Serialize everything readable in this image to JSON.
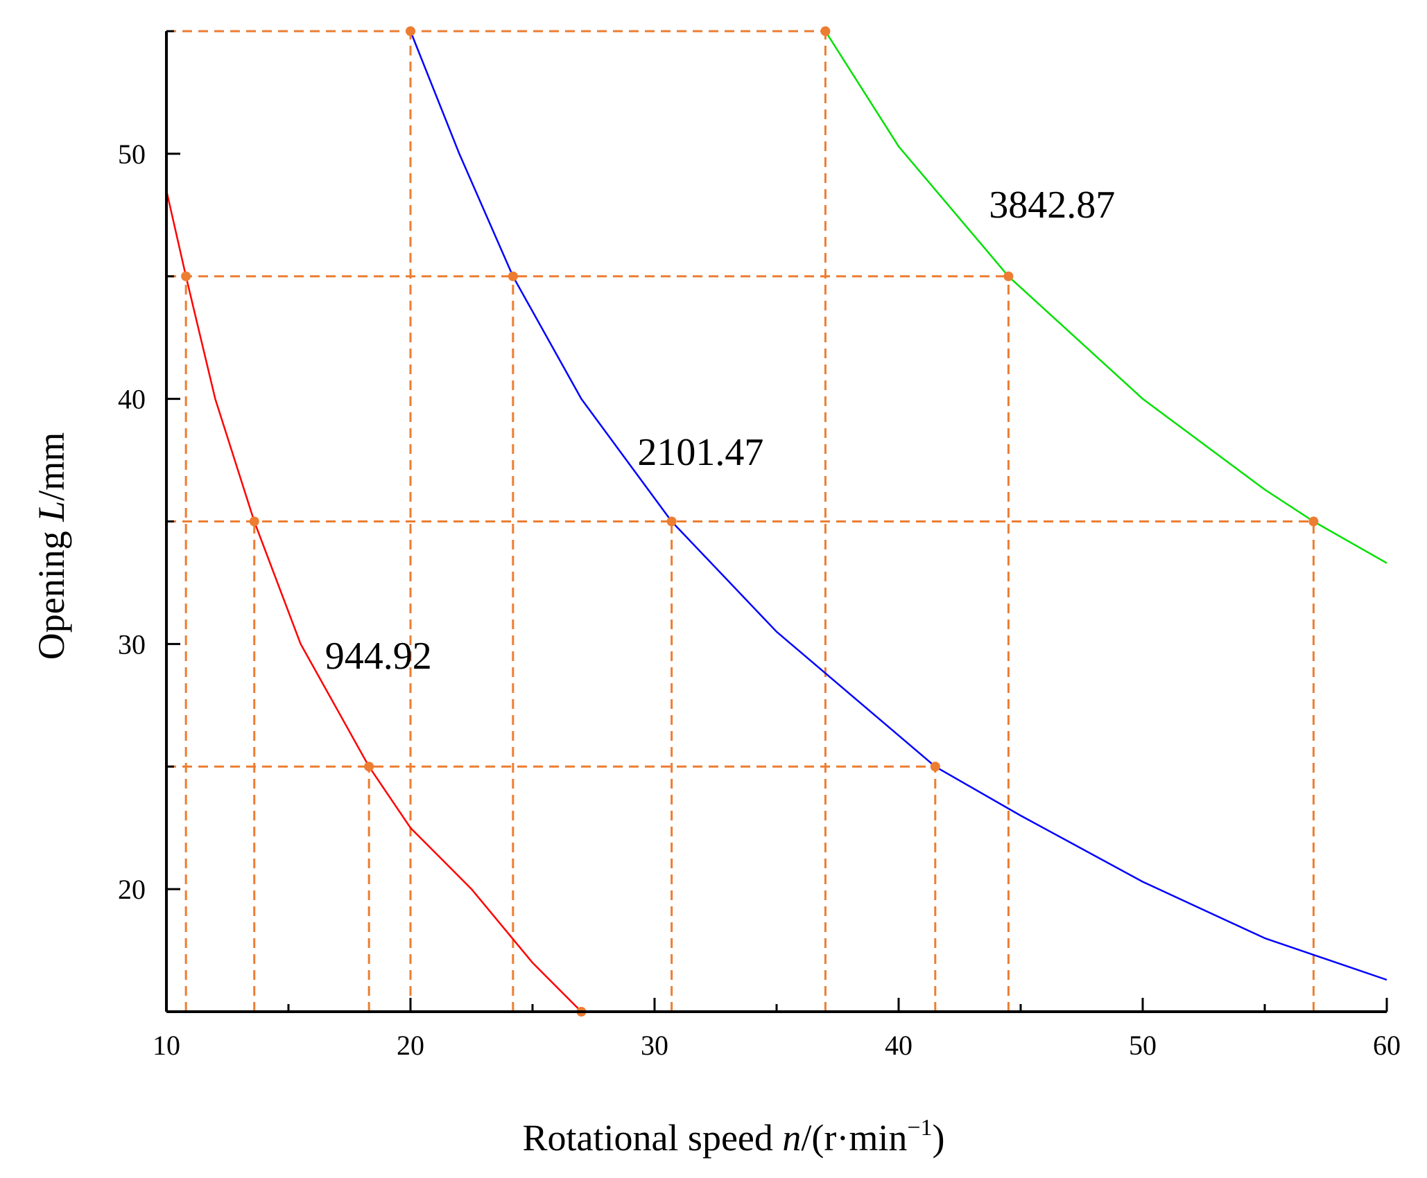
{
  "chart_data": {
    "type": "line",
    "title": "",
    "xlabel": "Rotational speed n/(r·min−1)",
    "xlabel_parts": {
      "prefix": "Rotational speed ",
      "var": "n",
      "unit_open": "/(r·min",
      "sup": "−1",
      "unit_close": ")"
    },
    "ylabel": "Opening L/mm",
    "ylabel_parts": {
      "prefix": "Opening ",
      "var": "L",
      "unit": "/mm"
    },
    "xlim": [
      10,
      60
    ],
    "ylim": [
      15,
      55
    ],
    "xticks": [
      "10",
      "20",
      "30",
      "40",
      "50",
      "60"
    ],
    "yticks": [
      "20",
      "30",
      "40",
      "50"
    ],
    "series": [
      {
        "name": "944.92",
        "color": "#ff0000",
        "points": [
          [
            10,
            48.5
          ],
          [
            10.8,
            45
          ],
          [
            12,
            40
          ],
          [
            13.6,
            35
          ],
          [
            15.5,
            30
          ],
          [
            18.3,
            25
          ],
          [
            20,
            22.5
          ],
          [
            22.5,
            20
          ],
          [
            25,
            17
          ],
          [
            27,
            15
          ]
        ]
      },
      {
        "name": "2101.47",
        "color": "#0000ff",
        "points": [
          [
            20,
            55
          ],
          [
            22,
            50
          ],
          [
            24.2,
            45
          ],
          [
            27,
            40
          ],
          [
            30.7,
            35
          ],
          [
            35,
            30.5
          ],
          [
            41.5,
            25
          ],
          [
            45,
            23
          ],
          [
            50,
            20.3
          ],
          [
            55,
            18
          ],
          [
            60,
            16.3
          ]
        ]
      },
      {
        "name": "3842.87",
        "color": "#00e000",
        "points": [
          [
            37,
            55
          ],
          [
            40,
            50.3
          ],
          [
            44.5,
            45
          ],
          [
            50,
            40
          ],
          [
            55,
            36.3
          ],
          [
            57,
            35
          ],
          [
            60,
            33.3
          ]
        ]
      }
    ],
    "reference_points": [
      [
        10.8,
        45
      ],
      [
        13.6,
        35
      ],
      [
        18.3,
        25
      ],
      [
        20,
        55
      ],
      [
        24.2,
        45
      ],
      [
        30.7,
        35
      ],
      [
        41.5,
        25
      ],
      [
        37,
        55
      ],
      [
        44.5,
        45
      ],
      [
        57,
        35
      ],
      [
        27,
        15
      ]
    ],
    "reference_horizontal": [
      {
        "y": 55,
        "x_to": 37
      },
      {
        "y": 45,
        "x_to": 44.5
      },
      {
        "y": 35,
        "x_to": 57
      },
      {
        "y": 25,
        "x_to": 41.5
      }
    ],
    "reference_vertical": [
      {
        "x": 10.8,
        "y_to": 45
      },
      {
        "x": 13.6,
        "y_to": 35
      },
      {
        "x": 18.3,
        "y_to": 25
      },
      {
        "x": 20,
        "y_to": 55
      },
      {
        "x": 24.2,
        "y_to": 45
      },
      {
        "x": 30.7,
        "y_to": 35
      },
      {
        "x": 37,
        "y_to": 55
      },
      {
        "x": 41.5,
        "y_to": 25
      },
      {
        "x": 44.5,
        "y_to": 45
      },
      {
        "x": 57,
        "y_to": 35
      }
    ],
    "annotations": [
      {
        "text": "944.92",
        "x": 16.5,
        "y": 29
      },
      {
        "text": "2101.47",
        "x": 29.3,
        "y": 37.3
      },
      {
        "text": "3842.87",
        "x": 43.7,
        "y": 47.4
      }
    ],
    "reference_color": "#ed7d31",
    "axis_color": "#000000",
    "grid": false,
    "legend": "none"
  }
}
